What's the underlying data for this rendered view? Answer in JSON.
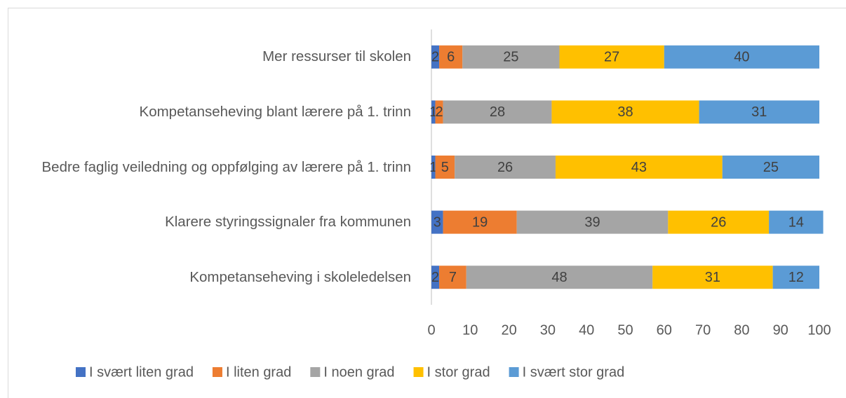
{
  "chart_data": {
    "type": "bar",
    "orientation": "horizontal",
    "stacked": true,
    "categories": [
      "Mer ressurser til skolen",
      "Kompetanseheving blant lærere på 1. trinn",
      "Bedre faglig veiledning og oppfølging av lærere på 1. trinn",
      "Klarere styringssignaler fra kommunen",
      "Kompetanseheving i skoleledelsen"
    ],
    "series": [
      {
        "name": "I svært liten grad",
        "color": "#4472c4",
        "values": [
          2,
          1,
          1,
          3,
          2
        ]
      },
      {
        "name": "I liten grad",
        "color": "#ed7d31",
        "values": [
          6,
          2,
          5,
          19,
          7
        ]
      },
      {
        "name": "I noen grad",
        "color": "#a5a5a5",
        "values": [
          25,
          28,
          26,
          39,
          48
        ]
      },
      {
        "name": "I stor grad",
        "color": "#ffc000",
        "values": [
          27,
          38,
          43,
          26,
          31
        ]
      },
      {
        "name": "I svært stor grad",
        "color": "#5b9bd5",
        "values": [
          40,
          31,
          25,
          14,
          12
        ]
      }
    ],
    "xlim": [
      0,
      100
    ],
    "xticks": [
      0,
      10,
      20,
      30,
      40,
      50,
      60,
      70,
      80,
      90,
      100
    ],
    "grid": false,
    "data_labels": true,
    "legend": "bottom"
  }
}
